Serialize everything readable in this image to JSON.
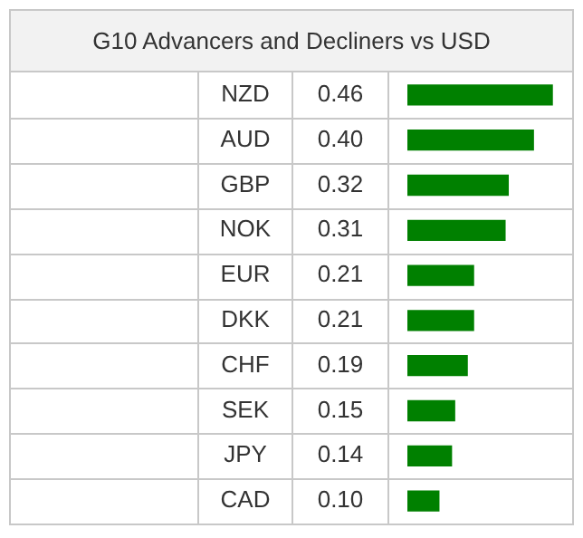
{
  "chart_data": {
    "type": "bar",
    "orientation": "horizontal",
    "title": "G10 Advancers and Decliners vs USD",
    "categories": [
      "NZD",
      "AUD",
      "GBP",
      "NOK",
      "EUR",
      "DKK",
      "CHF",
      "SEK",
      "JPY",
      "CAD"
    ],
    "values": [
      0.46,
      0.4,
      0.32,
      0.31,
      0.21,
      0.21,
      0.19,
      0.15,
      0.14,
      0.1
    ],
    "value_labels": [
      "0.46",
      "0.40",
      "0.32",
      "0.31",
      "0.21",
      "0.21",
      "0.19",
      "0.15",
      "0.14",
      "0.10"
    ],
    "color": "#008000",
    "legend": false
  }
}
